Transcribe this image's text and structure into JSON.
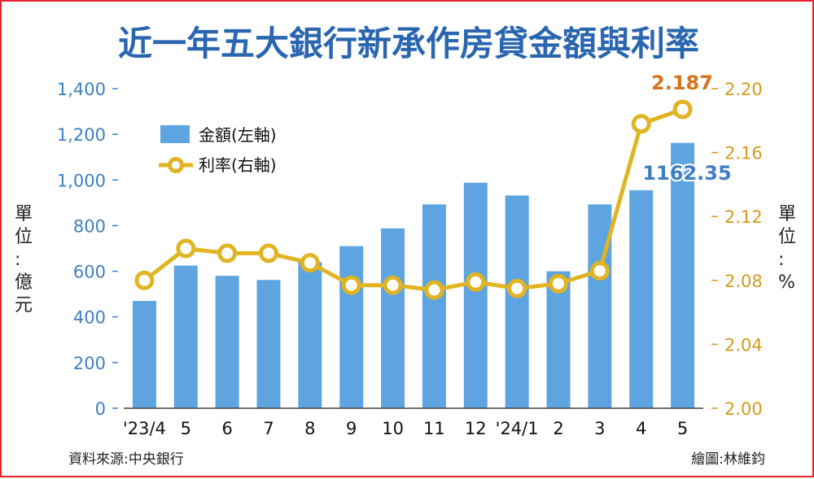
{
  "chart_data": {
    "type": "bar+line",
    "title": "近一年五大銀行新承作房貸金額與利率",
    "categories": [
      "'23/4",
      "5",
      "6",
      "7",
      "8",
      "9",
      "10",
      "11",
      "12",
      "'24/1",
      "2",
      "3",
      "4",
      "5"
    ],
    "series": [
      {
        "name": "金額(左軸)",
        "type": "bar",
        "axis": "left",
        "color": "#5ea4e0",
        "values": [
          470,
          625,
          580,
          562,
          640,
          710,
          788,
          893,
          988,
          932,
          600,
          893,
          955,
          1162.35
        ]
      },
      {
        "name": "利率(右軸)",
        "type": "line",
        "axis": "right",
        "color": "#e0b422",
        "values": [
          2.08,
          2.1,
          2.097,
          2.097,
          2.091,
          2.077,
          2.077,
          2.074,
          2.079,
          2.075,
          2.078,
          2.086,
          2.178,
          2.187
        ]
      }
    ],
    "left_axis": {
      "unit_label": "單位:億元",
      "ylim": [
        0,
        1400
      ],
      "ticks": [
        {
          "value": 0,
          "label": "0"
        },
        {
          "value": 200,
          "label": "200"
        },
        {
          "value": 400,
          "label": "400"
        },
        {
          "value": 600,
          "label": "600"
        },
        {
          "value": 800,
          "label": "800"
        },
        {
          "value": 1000,
          "label": "1,000"
        },
        {
          "value": 1200,
          "label": "1,200"
        },
        {
          "value": 1400,
          "label": "1,400"
        }
      ]
    },
    "right_axis": {
      "unit_label": "單位:%",
      "ylim": [
        2.0,
        2.2
      ],
      "ticks": [
        {
          "value": 2.0,
          "label": "2.00"
        },
        {
          "value": 2.04,
          "label": "2.04"
        },
        {
          "value": 2.08,
          "label": "2.08"
        },
        {
          "value": 2.12,
          "label": "2.12"
        },
        {
          "value": 2.16,
          "label": "2.16"
        },
        {
          "value": 2.2,
          "label": "2.20"
        }
      ]
    },
    "annotations": {
      "amount_label": "1162.35",
      "rate_label": "2.187"
    },
    "legend": {
      "placement": "top-left"
    },
    "grid": false
  },
  "footer": {
    "source": "資料來源:中央銀行",
    "credit": "繪圖:林維鈞"
  },
  "left_unit_chars": [
    "單",
    "位",
    ":",
    "億",
    "元"
  ],
  "right_unit_chars": [
    "單",
    "位",
    ":",
    "%"
  ]
}
